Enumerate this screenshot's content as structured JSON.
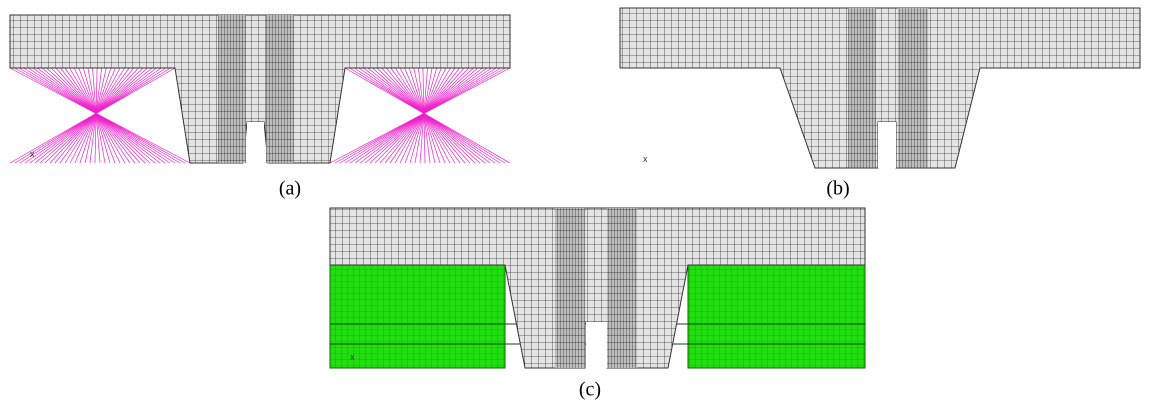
{
  "panels": [
    {
      "label": "(a)",
      "axis_label": "x"
    },
    {
      "label": "(b)",
      "axis_label": "x"
    },
    {
      "label": "(c)",
      "axis_label": "x"
    }
  ]
}
